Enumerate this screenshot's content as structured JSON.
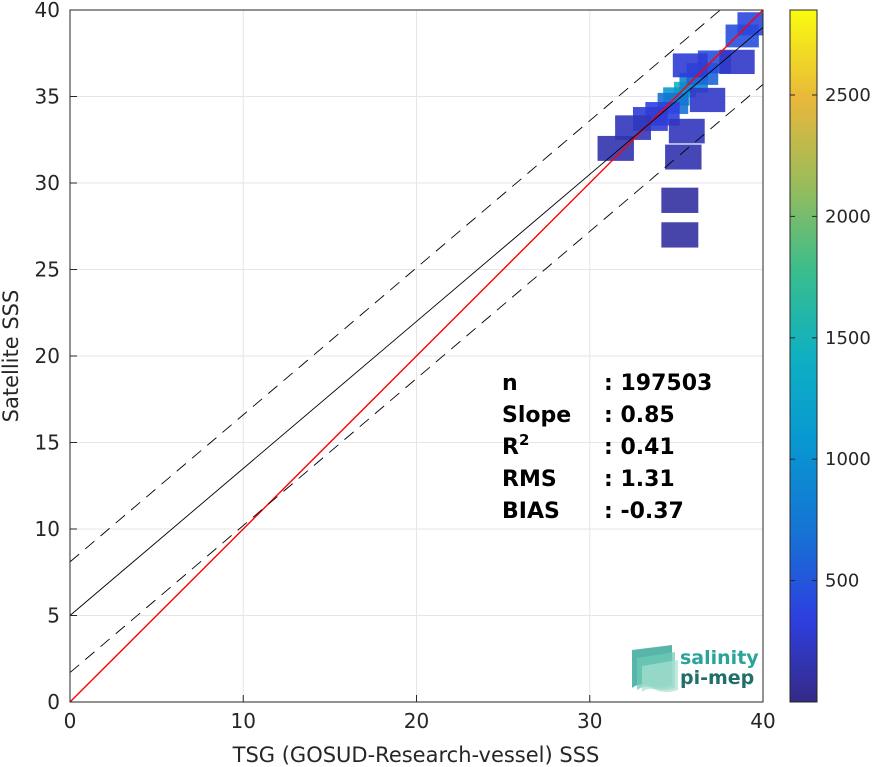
{
  "chart_data": {
    "type": "heatmap",
    "xlabel": "TSG (GOSUD-Research-vessel) SSS",
    "ylabel": "Satellite SSS",
    "xlim": [
      0,
      40
    ],
    "ylim": [
      0,
      40
    ],
    "xticks": [
      "0",
      "10",
      "20",
      "30",
      "40"
    ],
    "yticks": [
      "0",
      "5",
      "10",
      "15",
      "20",
      "25",
      "30",
      "35",
      "40"
    ],
    "grid": true,
    "colorbar": {
      "range": [
        0,
        2850
      ],
      "ticks": [
        "500",
        "1000",
        "1500",
        "2000",
        "2500"
      ],
      "colormap": "parula"
    },
    "lines": [
      {
        "name": "identity",
        "slope": 1,
        "intercept": 0,
        "color": "#ff0000",
        "style": "solid"
      },
      {
        "name": "fit",
        "slope": 0.85,
        "intercept": 5.0,
        "color": "#000000",
        "style": "solid"
      },
      {
        "name": "fit-upper",
        "slope": 0.85,
        "intercept": 8.1,
        "color": "#000000",
        "style": "dashed"
      },
      {
        "name": "fit-lower",
        "slope": 0.85,
        "intercept": 1.7,
        "color": "#000000",
        "style": "dashed"
      }
    ],
    "density_cells": [
      {
        "x": 35.5,
        "y": 35.4,
        "count": 1500
      },
      {
        "x": 35.0,
        "y": 35.0,
        "count": 1100
      },
      {
        "x": 36.0,
        "y": 35.8,
        "count": 900
      },
      {
        "x": 34.8,
        "y": 34.6,
        "count": 700
      },
      {
        "x": 36.5,
        "y": 36.3,
        "count": 600
      },
      {
        "x": 37.2,
        "y": 37.0,
        "count": 450
      },
      {
        "x": 38.8,
        "y": 38.5,
        "count": 450
      },
      {
        "x": 39.5,
        "y": 39.2,
        "count": 400
      },
      {
        "x": 34.2,
        "y": 34.0,
        "count": 350
      },
      {
        "x": 33.5,
        "y": 33.7,
        "count": 300
      },
      {
        "x": 35.8,
        "y": 36.8,
        "count": 300
      },
      {
        "x": 36.8,
        "y": 34.8,
        "count": 250
      },
      {
        "x": 32.5,
        "y": 33.2,
        "count": 200
      },
      {
        "x": 31.5,
        "y": 32.0,
        "count": 150
      },
      {
        "x": 35.6,
        "y": 33.0,
        "count": 200
      },
      {
        "x": 35.4,
        "y": 31.5,
        "count": 150
      },
      {
        "x": 35.2,
        "y": 29.0,
        "count": 100
      },
      {
        "x": 35.2,
        "y": 27.0,
        "count": 100
      },
      {
        "x": 38.5,
        "y": 37.0,
        "count": 250
      }
    ],
    "stats": [
      {
        "label": "n",
        "value": ": 197503"
      },
      {
        "label": "Slope",
        "value": ": 0.85"
      },
      {
        "label": "R",
        "sup": "2",
        "value": ": 0.41"
      },
      {
        "label": "RMS",
        "value": ": 1.31"
      },
      {
        "label": "BIAS",
        "value": ": -0.37"
      }
    ]
  },
  "logo": {
    "line1": "salinity",
    "line2": "pi-mep"
  }
}
